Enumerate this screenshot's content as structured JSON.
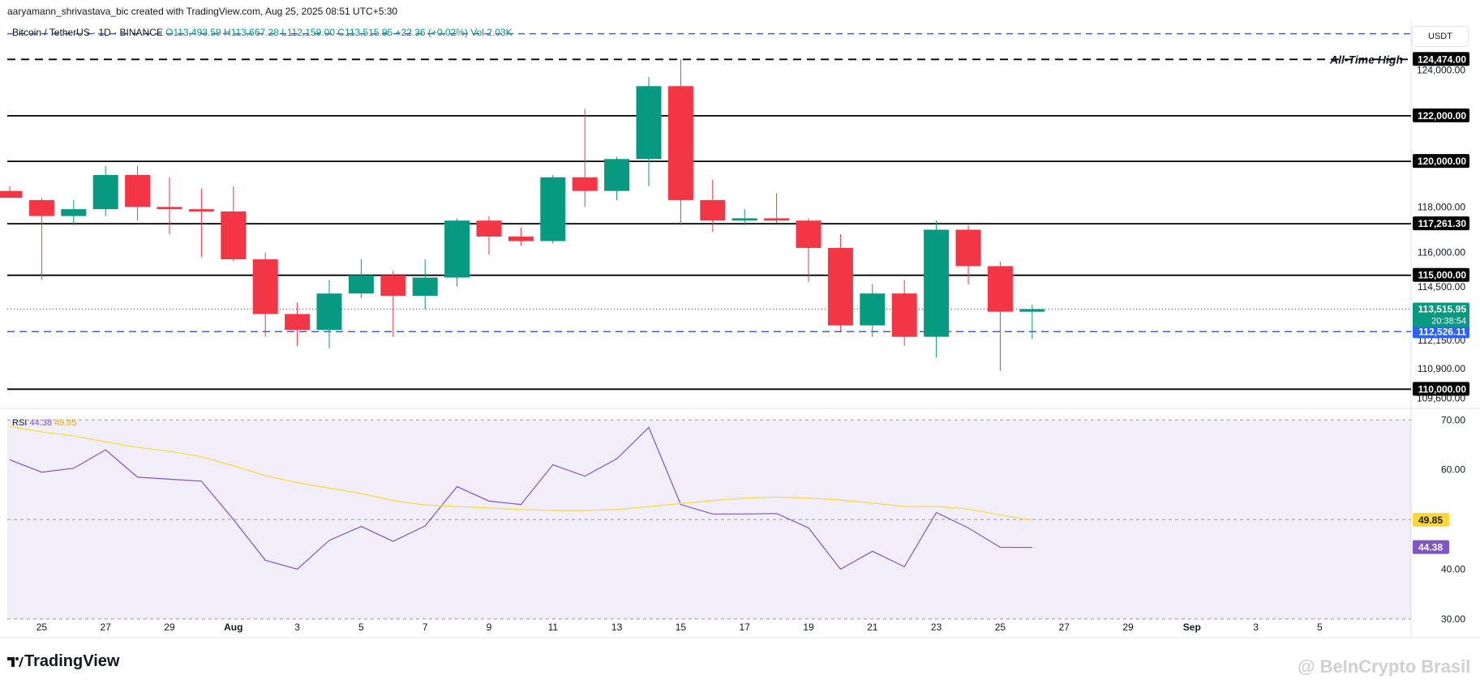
{
  "attribution": "aaryamann_shrivastava_bic created with TradingView.com, Aug 25, 2025 08:51 UTC+5:30",
  "currency": "USDT",
  "logo_text": "TradingView",
  "watermark": "@ BeInCrypto Brasil",
  "legend": {
    "symbol": "Bitcoin / TetherUS · 1D · BINANCE",
    "open": "O113,493.59",
    "high": "H113,667.28",
    "low": "L112,159.00",
    "close": "C113,515.95",
    "change": "+22.36 (+0.02%)",
    "vol": "Vol 2.03K"
  },
  "colors": {
    "up": "#089981",
    "down": "#f23645",
    "rsi_line": "#7e57c2",
    "rsi_ma": "#fdd835",
    "support_dashed": "#2962ff",
    "rsi_band": "#7e57c2"
  },
  "chart_data": [
    {
      "type": "candlestick",
      "x_labels": [
        "25",
        "27",
        "29",
        "Aug",
        "3",
        "5",
        "7",
        "9",
        "11",
        "13",
        "15",
        "17",
        "19",
        "21",
        "23",
        "25",
        "27",
        "29",
        "Sep",
        "3",
        "5"
      ],
      "y_ticks": [
        "124,000.00",
        "118,000.00",
        "116,000.00",
        "114,500.00",
        "112,150.00",
        "110,900.00",
        "109,600.00"
      ],
      "ylim": [
        109300,
        125800
      ],
      "candles": [
        {
          "o": 118700,
          "h": 118900,
          "l": 118400,
          "c": 118400
        },
        {
          "o": 118300,
          "h": 118400,
          "l": 114800,
          "c": 117600
        },
        {
          "o": 117600,
          "h": 118300,
          "l": 117200,
          "c": 117900
        },
        {
          "o": 117900,
          "h": 119800,
          "l": 117600,
          "c": 119400
        },
        {
          "o": 119400,
          "h": 119800,
          "l": 117400,
          "c": 118000
        },
        {
          "o": 118000,
          "h": 119300,
          "l": 116800,
          "c": 117900
        },
        {
          "o": 117900,
          "h": 118800,
          "l": 115800,
          "c": 117800
        },
        {
          "o": 117800,
          "h": 118900,
          "l": 115600,
          "c": 115700
        },
        {
          "o": 115700,
          "h": 116000,
          "l": 112300,
          "c": 113300
        },
        {
          "o": 113300,
          "h": 113800,
          "l": 111900,
          "c": 112600
        },
        {
          "o": 112600,
          "h": 114800,
          "l": 111800,
          "c": 114200
        },
        {
          "o": 114200,
          "h": 115700,
          "l": 114000,
          "c": 115000
        },
        {
          "o": 115000,
          "h": 115200,
          "l": 112300,
          "c": 114100
        },
        {
          "o": 114100,
          "h": 115700,
          "l": 113500,
          "c": 114900
        },
        {
          "o": 114900,
          "h": 117500,
          "l": 114500,
          "c": 117400
        },
        {
          "o": 117400,
          "h": 117600,
          "l": 115900,
          "c": 116700
        },
        {
          "o": 116700,
          "h": 117100,
          "l": 116300,
          "c": 116500
        },
        {
          "o": 116500,
          "h": 119400,
          "l": 116400,
          "c": 119300
        },
        {
          "o": 119300,
          "h": 122300,
          "l": 118000,
          "c": 118700
        },
        {
          "o": 118700,
          "h": 120200,
          "l": 118300,
          "c": 120100
        },
        {
          "o": 120100,
          "h": 123700,
          "l": 118900,
          "c": 123300
        },
        {
          "o": 123300,
          "h": 124474,
          "l": 117200,
          "c": 118300
        },
        {
          "o": 118300,
          "h": 119200,
          "l": 116900,
          "c": 117400
        },
        {
          "o": 117400,
          "h": 117900,
          "l": 117200,
          "c": 117500
        },
        {
          "o": 117500,
          "h": 118600,
          "l": 117300,
          "c": 117400
        },
        {
          "o": 117400,
          "h": 117500,
          "l": 114700,
          "c": 116200
        },
        {
          "o": 116200,
          "h": 116800,
          "l": 112500,
          "c": 112800
        },
        {
          "o": 112800,
          "h": 114600,
          "l": 112300,
          "c": 114200
        },
        {
          "o": 114200,
          "h": 114800,
          "l": 111900,
          "c": 112300
        },
        {
          "o": 112300,
          "h": 117400,
          "l": 111400,
          "c": 117000
        },
        {
          "o": 117000,
          "h": 117200,
          "l": 114600,
          "c": 115400
        },
        {
          "o": 115400,
          "h": 115600,
          "l": 110800,
          "c": 113400
        },
        {
          "o": 113400,
          "h": 113700,
          "l": 112200,
          "c": 113516
        }
      ],
      "levels": [
        {
          "price": 124474,
          "label": "124,474.00",
          "style": "dashed-black",
          "note": "All-Time High"
        },
        {
          "price": 122000,
          "label": "122,000.00",
          "style": "solid-black"
        },
        {
          "price": 120000,
          "label": "120,000.00",
          "style": "solid-black"
        },
        {
          "price": 117261.3,
          "label": "117,261.30",
          "style": "solid-black"
        },
        {
          "price": 115000,
          "label": "115,000.00",
          "style": "solid-black"
        },
        {
          "price": 112526.11,
          "label": "112,526.11",
          "style": "dashed-blue"
        },
        {
          "price": 110000,
          "label": "110,000.00",
          "style": "solid-black"
        }
      ],
      "top_dashed_price": 125600,
      "current": {
        "price": 113515.95,
        "label": "113,515.95",
        "countdown": "20:38:54"
      }
    },
    {
      "type": "line",
      "title": "RSI",
      "legend_values": [
        "44.38",
        "49.85"
      ],
      "ylim": [
        29,
        72
      ],
      "y_ticks": [
        "70.00",
        "60.00",
        "40.00",
        "30.00"
      ],
      "band": [
        30,
        70
      ],
      "mid": 50,
      "series": [
        {
          "name": "RSI",
          "values": [
            62,
            59.5,
            60.3,
            64,
            58.5,
            58.1,
            57.7,
            50,
            41.8,
            40,
            45.8,
            48.6,
            45.6,
            48.7,
            56.6,
            53.7,
            53,
            61,
            58.7,
            62.2,
            68.5,
            53,
            51.1,
            51.1,
            51.2,
            48.3,
            40,
            43.6,
            40.5,
            51.4,
            48.3,
            44.4,
            44.38
          ]
        },
        {
          "name": "RSI-based MA",
          "values": [
            68.7,
            67.6,
            66.8,
            65.6,
            64.5,
            63.7,
            62.6,
            60.8,
            58.8,
            57.4,
            56.3,
            55.2,
            53.8,
            52.9,
            52.6,
            52.3,
            52,
            51.8,
            51.8,
            52,
            52.6,
            53.2,
            53.8,
            54.3,
            54.5,
            54.3,
            53.9,
            53.3,
            52.6,
            52.6,
            52.1,
            50.9,
            49.85
          ]
        }
      ]
    }
  ]
}
